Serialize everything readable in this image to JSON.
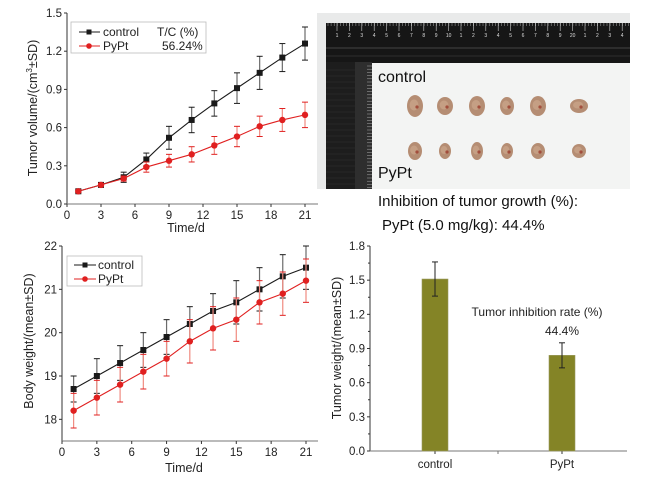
{
  "colors": {
    "control": "#1a1a1a",
    "pypt": "#e02020",
    "pypt_errorbar": "#f08a80",
    "control_errorbar": "#6b6b6b",
    "bar_fill": "#848426",
    "axis": "#333333"
  },
  "photo": {
    "label_control": "control",
    "label_pypt": "PyPt",
    "ruler_numbers": [
      "1",
      "2",
      "3",
      "4",
      "5",
      "6",
      "7",
      "8",
      "9",
      "10",
      "1",
      "2",
      "3",
      "4",
      "5",
      "6",
      "7",
      "8",
      "9",
      "20",
      "1",
      "2",
      "3",
      "4"
    ],
    "control_tumor_count": 6,
    "pypt_tumor_count": 6
  },
  "caption": {
    "line1": "Inhibition of tumor growth (%):",
    "line2": "PyPt (5.0 mg/kg): 44.4%"
  },
  "chart_data": [
    {
      "id": "tumor-volume",
      "type": "line",
      "title": "",
      "xlabel": "Time/d",
      "ylabel": "Tumor volume/(cm³±SD)",
      "ylabel_parts": [
        "Tumor volume/(cm",
        "3",
        "±SD)"
      ],
      "xlim": [
        0,
        21
      ],
      "ylim": [
        0,
        1.5
      ],
      "xticks": [
        0,
        3,
        6,
        9,
        12,
        15,
        18,
        21
      ],
      "yticks": [
        0.0,
        0.3,
        0.6,
        0.9,
        1.2,
        1.5
      ],
      "ytick_labels": [
        "0.0",
        "0.3",
        "0.6",
        "0.9",
        "1.2",
        "1.5"
      ],
      "grid": false,
      "legend": {
        "placement": "top-left",
        "header": "T/C (%)",
        "annotation": "56.24%"
      },
      "x": [
        1,
        3,
        5,
        7,
        9,
        11,
        13,
        15,
        17,
        19,
        21
      ],
      "series": [
        {
          "name": "control",
          "marker": "square",
          "values": [
            0.1,
            0.15,
            0.21,
            0.35,
            0.52,
            0.66,
            0.79,
            0.91,
            1.03,
            1.15,
            1.26
          ],
          "errors": [
            0.01,
            0.01,
            0.04,
            0.05,
            0.09,
            0.1,
            0.1,
            0.12,
            0.13,
            0.11,
            0.13
          ]
        },
        {
          "name": "PyPt",
          "marker": "circle",
          "values": [
            0.1,
            0.15,
            0.2,
            0.29,
            0.34,
            0.39,
            0.46,
            0.53,
            0.61,
            0.66,
            0.7
          ],
          "errors": [
            0.01,
            0.01,
            0.02,
            0.04,
            0.05,
            0.06,
            0.07,
            0.08,
            0.08,
            0.09,
            0.1
          ]
        }
      ]
    },
    {
      "id": "body-weight",
      "type": "line",
      "title": "",
      "xlabel": "Time/d",
      "ylabel": "Body weight/(mean±SD)",
      "xlim": [
        0,
        21
      ],
      "ylim": [
        17.5,
        22
      ],
      "xticks": [
        0,
        3,
        6,
        9,
        12,
        15,
        18,
        21
      ],
      "yticks": [
        18,
        19,
        20,
        21,
        22
      ],
      "ytick_labels": [
        "18",
        "19",
        "20",
        "21",
        "22"
      ],
      "grid": false,
      "legend": {
        "placement": "top-left"
      },
      "x": [
        1,
        3,
        5,
        7,
        9,
        11,
        13,
        15,
        17,
        19,
        21
      ],
      "series": [
        {
          "name": "control",
          "marker": "square",
          "values": [
            18.7,
            19.0,
            19.3,
            19.6,
            19.9,
            20.2,
            20.5,
            20.7,
            21.0,
            21.3,
            21.5
          ],
          "errors": [
            0.3,
            0.4,
            0.4,
            0.4,
            0.4,
            0.4,
            0.4,
            0.5,
            0.5,
            0.5,
            0.5
          ]
        },
        {
          "name": "PyPt",
          "marker": "circle",
          "values": [
            18.2,
            18.5,
            18.8,
            19.1,
            19.4,
            19.8,
            20.1,
            20.3,
            20.7,
            20.9,
            21.2
          ],
          "errors": [
            0.4,
            0.4,
            0.4,
            0.4,
            0.4,
            0.5,
            0.5,
            0.5,
            0.5,
            0.5,
            0.5
          ]
        }
      ]
    },
    {
      "id": "tumor-weight",
      "type": "bar",
      "title": "",
      "xlabel": "",
      "ylabel": "Tumor weight/(mean±SD)",
      "categories": [
        "control",
        "PyPt"
      ],
      "values": [
        1.51,
        0.84
      ],
      "errors": [
        0.15,
        0.11
      ],
      "ylim": [
        0,
        1.8
      ],
      "yticks": [
        0.0,
        0.3,
        0.6,
        0.9,
        1.2,
        1.5,
        1.8
      ],
      "ytick_labels": [
        "0.0",
        "0.3",
        "0.6",
        "0.9",
        "1.2",
        "1.5",
        "1.8"
      ],
      "grid": false,
      "annotations": [
        "Tumor inhibition rate (%)",
        "44.4%"
      ]
    }
  ]
}
